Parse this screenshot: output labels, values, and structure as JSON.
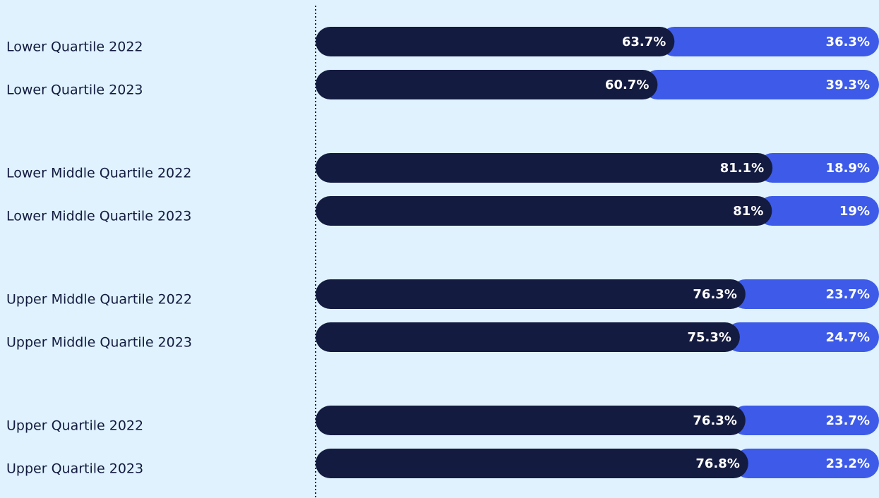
{
  "chart_data": {
    "type": "stacked-bar-horizontal",
    "categories": [
      "Lower Quartile 2022",
      "Lower Quartile 2023",
      "Lower Middle Quartile 2022",
      "Lower Middle Quartile 2023",
      "Upper Middle Quartile 2022",
      "Upper Middle Quartile 2023",
      "Upper Quartile 2022",
      "Upper Quartile 2023"
    ],
    "series": [
      {
        "color": "#141b40",
        "values": [
          63.7,
          60.7,
          81.1,
          81,
          76.3,
          75.3,
          76.3,
          76.8
        ],
        "value_labels": [
          "63.7%",
          "60.7%",
          "81.1%",
          "81%",
          "76.3%",
          "75.3%",
          "76.3%",
          "76.8%"
        ]
      },
      {
        "color": "#3d5be8",
        "values": [
          36.3,
          39.3,
          18.9,
          19,
          23.7,
          24.7,
          23.7,
          23.2
        ],
        "value_labels": [
          "36.3%",
          "39.3%",
          "18.9%",
          "19%",
          "23.7%",
          "24.7%",
          "23.7%",
          "23.2%"
        ]
      }
    ],
    "xlim": [
      0,
      100
    ]
  }
}
